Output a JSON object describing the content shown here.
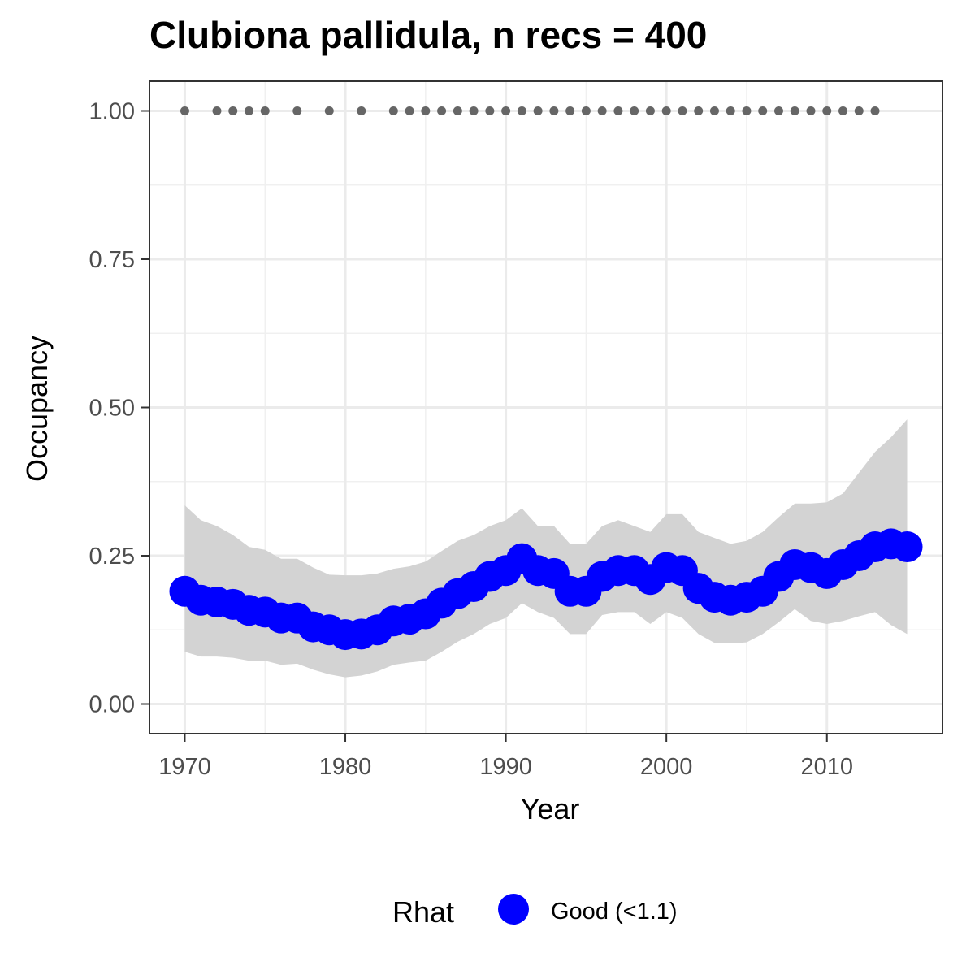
{
  "chart_data": {
    "type": "line",
    "title": "Clubiona pallidula, n recs = 400",
    "xlabel": "Year",
    "ylabel": "Occupancy",
    "xlim": [
      1967.8,
      2017.2
    ],
    "ylim": [
      -0.05,
      1.05
    ],
    "x_ticks": [
      1970,
      1980,
      1990,
      2000,
      2010
    ],
    "x_tick_labels": [
      "1970",
      "1980",
      "1990",
      "2000",
      "2010"
    ],
    "y_ticks": [
      0.0,
      0.25,
      0.5,
      0.75,
      1.0
    ],
    "y_tick_labels": [
      "0.00",
      "0.25",
      "0.50",
      "0.75",
      "1.00"
    ],
    "grid": true,
    "series": [
      {
        "name": "Good (<1.1)",
        "color": "#0000ff",
        "x": [
          1970,
          1971,
          1972,
          1973,
          1974,
          1975,
          1976,
          1977,
          1978,
          1979,
          1980,
          1981,
          1982,
          1983,
          1984,
          1985,
          1986,
          1987,
          1988,
          1989,
          1990,
          1991,
          1992,
          1993,
          1994,
          1995,
          1996,
          1997,
          1998,
          1999,
          2000,
          2001,
          2002,
          2003,
          2004,
          2005,
          2006,
          2007,
          2008,
          2009,
          2010,
          2011,
          2012,
          2013,
          2014,
          2015
        ],
        "values": [
          0.19,
          0.175,
          0.172,
          0.168,
          0.158,
          0.155,
          0.145,
          0.145,
          0.13,
          0.125,
          0.117,
          0.118,
          0.125,
          0.14,
          0.143,
          0.152,
          0.17,
          0.186,
          0.198,
          0.215,
          0.225,
          0.245,
          0.225,
          0.22,
          0.19,
          0.19,
          0.215,
          0.225,
          0.225,
          0.21,
          0.23,
          0.225,
          0.195,
          0.18,
          0.175,
          0.18,
          0.19,
          0.215,
          0.235,
          0.23,
          0.22,
          0.235,
          0.25,
          0.265,
          0.27,
          0.265
        ],
        "lower": [
          0.088,
          0.08,
          0.08,
          0.078,
          0.073,
          0.073,
          0.066,
          0.068,
          0.058,
          0.05,
          0.045,
          0.048,
          0.055,
          0.066,
          0.07,
          0.073,
          0.088,
          0.105,
          0.118,
          0.135,
          0.145,
          0.17,
          0.155,
          0.145,
          0.118,
          0.118,
          0.15,
          0.155,
          0.155,
          0.135,
          0.155,
          0.145,
          0.118,
          0.103,
          0.102,
          0.104,
          0.118,
          0.138,
          0.16,
          0.14,
          0.135,
          0.14,
          0.148,
          0.155,
          0.133,
          0.118
        ],
        "upper": [
          0.335,
          0.31,
          0.3,
          0.285,
          0.265,
          0.26,
          0.245,
          0.245,
          0.23,
          0.218,
          0.217,
          0.217,
          0.22,
          0.228,
          0.232,
          0.24,
          0.258,
          0.275,
          0.285,
          0.3,
          0.31,
          0.33,
          0.3,
          0.3,
          0.27,
          0.27,
          0.3,
          0.31,
          0.3,
          0.29,
          0.32,
          0.32,
          0.29,
          0.28,
          0.27,
          0.275,
          0.29,
          0.315,
          0.338,
          0.338,
          0.34,
          0.355,
          0.39,
          0.425,
          0.45,
          0.48
        ]
      }
    ],
    "record_years": {
      "y": 1.0,
      "color": "#666666",
      "x": [
        1970,
        1972,
        1973,
        1974,
        1975,
        1977,
        1979,
        1981,
        1983,
        1984,
        1985,
        1986,
        1987,
        1988,
        1989,
        1990,
        1991,
        1992,
        1993,
        1994,
        1995,
        1996,
        1997,
        1998,
        1999,
        2000,
        2001,
        2002,
        2003,
        2004,
        2005,
        2006,
        2007,
        2008,
        2009,
        2010,
        2011,
        2012,
        2013
      ]
    },
    "band_color": "#d3d3d3",
    "legend": {
      "title": "Rhat",
      "position": "bottom",
      "items": [
        {
          "label": "Good (<1.1)",
          "color": "#0000ff"
        }
      ]
    }
  }
}
